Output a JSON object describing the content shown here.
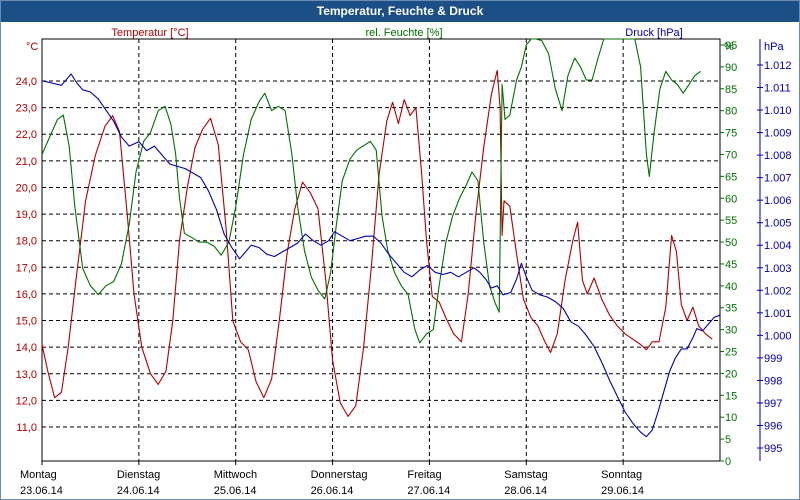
{
  "window": {
    "title": "Temperatur, Feuchte & Druck"
  },
  "chart_data": {
    "type": "line",
    "series_labels": {
      "temperature": "Temperatur [°C]",
      "humidity": "rel. Feuchte [%]",
      "pressure": "Druck [hPa]"
    },
    "axis_units": {
      "left": "°C",
      "right1": "%",
      "right2": "hPa"
    },
    "temp_ticks": [
      "11,0",
      "12,0",
      "13,0",
      "14,0",
      "15,0",
      "16,0",
      "17,0",
      "18,0",
      "19,0",
      "20,0",
      "21,0",
      "22,0",
      "23,0",
      "24,0"
    ],
    "hum_ticks": [
      "0",
      "5",
      "10",
      "15",
      "20",
      "25",
      "30",
      "35",
      "40",
      "45",
      "50",
      "55",
      "60",
      "65",
      "70",
      "75",
      "80",
      "85",
      "90",
      "95"
    ],
    "press_ticks": [
      "995",
      "996",
      "997",
      "998",
      "999",
      "1.000",
      "1.001",
      "1.002",
      "1.003",
      "1.004",
      "1.005",
      "1.006",
      "1.007",
      "1.008",
      "1.009",
      "1.010",
      "1.011",
      "1.012"
    ],
    "ylim_temp": [
      11.0,
      24.0
    ],
    "ylim_hum": [
      0,
      95
    ],
    "ylim_press": [
      995,
      1012
    ],
    "days": [
      {
        "name": "Montag",
        "date": "23.06.14"
      },
      {
        "name": "Dienstag",
        "date": "24.06.14"
      },
      {
        "name": "Mittwoch",
        "date": "25.06.14"
      },
      {
        "name": "Donnerstag",
        "date": "26.06.14"
      },
      {
        "name": "Freitag",
        "date": "27.06.14"
      },
      {
        "name": "Samstag",
        "date": "28.06.14"
      },
      {
        "name": "Sonntag",
        "date": "29.06.14"
      }
    ],
    "x_range": [
      0,
      7
    ],
    "series": [
      {
        "name": "Temperatur [°C]",
        "color": "#b00000",
        "axis": "temp",
        "points": [
          [
            0,
            14.1
          ],
          [
            0.06,
            13.1
          ],
          [
            0.13,
            12.1
          ],
          [
            0.2,
            12.3
          ],
          [
            0.27,
            14
          ],
          [
            0.35,
            16.5
          ],
          [
            0.45,
            19.5
          ],
          [
            0.55,
            21.2
          ],
          [
            0.65,
            22.3
          ],
          [
            0.73,
            22.7
          ],
          [
            0.8,
            22.1
          ],
          [
            0.88,
            19
          ],
          [
            0.95,
            16
          ],
          [
            1.03,
            14
          ],
          [
            1.12,
            13
          ],
          [
            1.2,
            12.6
          ],
          [
            1.28,
            13.1
          ],
          [
            1.35,
            15
          ],
          [
            1.42,
            18
          ],
          [
            1.5,
            20
          ],
          [
            1.58,
            21.5
          ],
          [
            1.66,
            22.2
          ],
          [
            1.74,
            22.6
          ],
          [
            1.82,
            21.6
          ],
          [
            1.9,
            18.5
          ],
          [
            1.97,
            15
          ],
          [
            2.05,
            14.2
          ],
          [
            2.13,
            13.9
          ],
          [
            2.21,
            12.7
          ],
          [
            2.29,
            12.1
          ],
          [
            2.37,
            12.8
          ],
          [
            2.45,
            15
          ],
          [
            2.53,
            17.5
          ],
          [
            2.61,
            19.2
          ],
          [
            2.69,
            20.2
          ],
          [
            2.77,
            19.8
          ],
          [
            2.85,
            19.2
          ],
          [
            2.93,
            16.5
          ],
          [
            3.0,
            13.5
          ],
          [
            3.08,
            11.9
          ],
          [
            3.16,
            11.4
          ],
          [
            3.24,
            11.8
          ],
          [
            3.32,
            14
          ],
          [
            3.4,
            17
          ],
          [
            3.48,
            20.5
          ],
          [
            3.56,
            22.5
          ],
          [
            3.62,
            23.2
          ],
          [
            3.68,
            22.4
          ],
          [
            3.74,
            23.3
          ],
          [
            3.8,
            22.7
          ],
          [
            3.86,
            23.0
          ],
          [
            3.92,
            20.5
          ],
          [
            3.97,
            18
          ],
          [
            4.03,
            15.9
          ],
          [
            4.1,
            15.7
          ],
          [
            4.17,
            15.1
          ],
          [
            4.25,
            14.5
          ],
          [
            4.33,
            14.2
          ],
          [
            4.4,
            16
          ],
          [
            4.48,
            19
          ],
          [
            4.56,
            21.5
          ],
          [
            4.64,
            23.5
          ],
          [
            4.7,
            24.4
          ],
          [
            4.73,
            23
          ],
          [
            4.75,
            18.2
          ],
          [
            4.77,
            19.5
          ],
          [
            4.83,
            19.3
          ],
          [
            4.9,
            17.5
          ],
          [
            4.97,
            15.8
          ],
          [
            5.05,
            15.1
          ],
          [
            5.12,
            14.8
          ],
          [
            5.18,
            14.3
          ],
          [
            5.25,
            13.8
          ],
          [
            5.32,
            14.5
          ],
          [
            5.4,
            16.5
          ],
          [
            5.48,
            18
          ],
          [
            5.53,
            18.7
          ],
          [
            5.58,
            16.5
          ],
          [
            5.63,
            16.0
          ],
          [
            5.7,
            16.6
          ],
          [
            5.78,
            15.8
          ],
          [
            5.86,
            15.2
          ],
          [
            5.94,
            14.8
          ],
          [
            6.02,
            14.5
          ],
          [
            6.1,
            14.3
          ],
          [
            6.18,
            14.1
          ],
          [
            6.24,
            13.9
          ],
          [
            6.3,
            14.2
          ],
          [
            6.37,
            14.2
          ],
          [
            6.44,
            15.5
          ],
          [
            6.5,
            18.2
          ],
          [
            6.55,
            17.6
          ],
          [
            6.6,
            15.6
          ],
          [
            6.66,
            15.0
          ],
          [
            6.72,
            15.5
          ],
          [
            6.78,
            14.8
          ],
          [
            6.85,
            14.5
          ],
          [
            6.92,
            14.3
          ]
        ]
      },
      {
        "name": "rel. Feuchte [%]",
        "color": "#007000",
        "axis": "hum",
        "points": [
          [
            0,
            70
          ],
          [
            0.08,
            74
          ],
          [
            0.16,
            78
          ],
          [
            0.22,
            79
          ],
          [
            0.28,
            72
          ],
          [
            0.34,
            58
          ],
          [
            0.42,
            44
          ],
          [
            0.5,
            40
          ],
          [
            0.58,
            38
          ],
          [
            0.66,
            40
          ],
          [
            0.74,
            41
          ],
          [
            0.82,
            45
          ],
          [
            0.9,
            54
          ],
          [
            0.97,
            66
          ],
          [
            1.05,
            73
          ],
          [
            1.12,
            75
          ],
          [
            1.2,
            80
          ],
          [
            1.27,
            81
          ],
          [
            1.33,
            77
          ],
          [
            1.38,
            70
          ],
          [
            1.42,
            60
          ],
          [
            1.47,
            52
          ],
          [
            1.55,
            51
          ],
          [
            1.62,
            50
          ],
          [
            1.7,
            50
          ],
          [
            1.78,
            49
          ],
          [
            1.85,
            47
          ],
          [
            1.93,
            50
          ],
          [
            2.0,
            58
          ],
          [
            2.08,
            70
          ],
          [
            2.16,
            78
          ],
          [
            2.24,
            82
          ],
          [
            2.3,
            84
          ],
          [
            2.37,
            80
          ],
          [
            2.44,
            81
          ],
          [
            2.51,
            80
          ],
          [
            2.58,
            70
          ],
          [
            2.64,
            58
          ],
          [
            2.71,
            48
          ],
          [
            2.78,
            42
          ],
          [
            2.85,
            39
          ],
          [
            2.92,
            37
          ],
          [
            2.98,
            43
          ],
          [
            3.04,
            54
          ],
          [
            3.1,
            64
          ],
          [
            3.18,
            69
          ],
          [
            3.25,
            71
          ],
          [
            3.32,
            72
          ],
          [
            3.39,
            73
          ],
          [
            3.45,
            71
          ],
          [
            3.51,
            56
          ],
          [
            3.57,
            48
          ],
          [
            3.64,
            43
          ],
          [
            3.71,
            40
          ],
          [
            3.78,
            38
          ],
          [
            3.85,
            30
          ],
          [
            3.9,
            27
          ],
          [
            3.97,
            29
          ],
          [
            4.04,
            30
          ],
          [
            4.1,
            40
          ],
          [
            4.17,
            50
          ],
          [
            4.24,
            56
          ],
          [
            4.31,
            60
          ],
          [
            4.38,
            63
          ],
          [
            4.44,
            66
          ],
          [
            4.5,
            64
          ],
          [
            4.56,
            50
          ],
          [
            4.62,
            40
          ],
          [
            4.68,
            36
          ],
          [
            4.72,
            34
          ],
          [
            4.75,
            86
          ],
          [
            4.78,
            78
          ],
          [
            4.83,
            79
          ],
          [
            4.9,
            87
          ],
          [
            4.95,
            90
          ],
          [
            5.0,
            95
          ],
          [
            5.05,
            100
          ],
          [
            5.1,
            100
          ],
          [
            5.16,
            96
          ],
          [
            5.23,
            93
          ],
          [
            5.3,
            85
          ],
          [
            5.37,
            80
          ],
          [
            5.43,
            88
          ],
          [
            5.5,
            92
          ],
          [
            5.56,
            90
          ],
          [
            5.62,
            87
          ],
          [
            5.68,
            87
          ],
          [
            5.74,
            92
          ],
          [
            5.8,
            97
          ],
          [
            5.86,
            99
          ],
          [
            5.95,
            100
          ],
          [
            6.05,
            99
          ],
          [
            6.12,
            98
          ],
          [
            6.18,
            90
          ],
          [
            6.24,
            70
          ],
          [
            6.27,
            65
          ],
          [
            6.32,
            75
          ],
          [
            6.38,
            85
          ],
          [
            6.44,
            89
          ],
          [
            6.5,
            87
          ],
          [
            6.56,
            86
          ],
          [
            6.62,
            84
          ],
          [
            6.68,
            86
          ],
          [
            6.74,
            88
          ],
          [
            6.8,
            89
          ]
        ]
      },
      {
        "name": "Druck [hPa]",
        "color": "#0000b0",
        "axis": "press",
        "points": [
          [
            0,
            1011.3
          ],
          [
            0.1,
            1011.2
          ],
          [
            0.2,
            1011.1
          ],
          [
            0.3,
            1011.6
          ],
          [
            0.36,
            1011.2
          ],
          [
            0.42,
            1010.9
          ],
          [
            0.5,
            1010.8
          ],
          [
            0.58,
            1010.5
          ],
          [
            0.66,
            1010.0
          ],
          [
            0.74,
            1009.5
          ],
          [
            0.82,
            1008.8
          ],
          [
            0.9,
            1008.4
          ],
          [
            1.0,
            1008.6
          ],
          [
            1.08,
            1008.2
          ],
          [
            1.16,
            1008.4
          ],
          [
            1.24,
            1008.0
          ],
          [
            1.32,
            1007.6
          ],
          [
            1.4,
            1007.5
          ],
          [
            1.48,
            1007.4
          ],
          [
            1.56,
            1007.2
          ],
          [
            1.64,
            1007.0
          ],
          [
            1.72,
            1006.4
          ],
          [
            1.8,
            1005.6
          ],
          [
            1.88,
            1004.5
          ],
          [
            1.96,
            1003.9
          ],
          [
            2.04,
            1003.4
          ],
          [
            2.1,
            1003.7
          ],
          [
            2.16,
            1004.0
          ],
          [
            2.24,
            1003.9
          ],
          [
            2.32,
            1003.6
          ],
          [
            2.4,
            1003.5
          ],
          [
            2.48,
            1003.7
          ],
          [
            2.56,
            1003.9
          ],
          [
            2.64,
            1004.1
          ],
          [
            2.72,
            1004.5
          ],
          [
            2.8,
            1004.2
          ],
          [
            2.88,
            1004.0
          ],
          [
            2.96,
            1004.2
          ],
          [
            3.02,
            1004.6
          ],
          [
            3.1,
            1004.4
          ],
          [
            3.18,
            1004.2
          ],
          [
            3.26,
            1004.3
          ],
          [
            3.34,
            1004.4
          ],
          [
            3.42,
            1004.4
          ],
          [
            3.5,
            1004.1
          ],
          [
            3.58,
            1003.6
          ],
          [
            3.66,
            1003.2
          ],
          [
            3.74,
            1002.8
          ],
          [
            3.82,
            1002.6
          ],
          [
            3.9,
            1002.9
          ],
          [
            3.98,
            1003.1
          ],
          [
            4.06,
            1002.8
          ],
          [
            4.14,
            1002.7
          ],
          [
            4.22,
            1002.8
          ],
          [
            4.3,
            1002.6
          ],
          [
            4.38,
            1002.8
          ],
          [
            4.46,
            1003.0
          ],
          [
            4.52,
            1002.8
          ],
          [
            4.58,
            1002.5
          ],
          [
            4.64,
            1002.1
          ],
          [
            4.7,
            1002.2
          ],
          [
            4.76,
            1001.8
          ],
          [
            4.84,
            1001.9
          ],
          [
            4.9,
            1002.5
          ],
          [
            4.95,
            1003.2
          ],
          [
            5.0,
            1002.6
          ],
          [
            5.06,
            1002.0
          ],
          [
            5.14,
            1001.8
          ],
          [
            5.22,
            1001.7
          ],
          [
            5.3,
            1001.5
          ],
          [
            5.38,
            1001.2
          ],
          [
            5.46,
            1000.6
          ],
          [
            5.54,
            1000.4
          ],
          [
            5.62,
            1000.0
          ],
          [
            5.7,
            999.5
          ],
          [
            5.78,
            998.8
          ],
          [
            5.86,
            998.0
          ],
          [
            5.94,
            997.3
          ],
          [
            6.02,
            996.6
          ],
          [
            6.1,
            996.1
          ],
          [
            6.18,
            995.7
          ],
          [
            6.24,
            995.5
          ],
          [
            6.3,
            995.8
          ],
          [
            6.36,
            996.6
          ],
          [
            6.42,
            997.5
          ],
          [
            6.48,
            998.4
          ],
          [
            6.54,
            999.0
          ],
          [
            6.6,
            999.4
          ],
          [
            6.66,
            999.4
          ],
          [
            6.72,
            999.9
          ],
          [
            6.76,
            1000.3
          ],
          [
            6.82,
            1000.2
          ],
          [
            6.88,
            1000.5
          ],
          [
            6.94,
            1000.8
          ],
          [
            7.0,
            1000.9
          ]
        ]
      }
    ]
  }
}
